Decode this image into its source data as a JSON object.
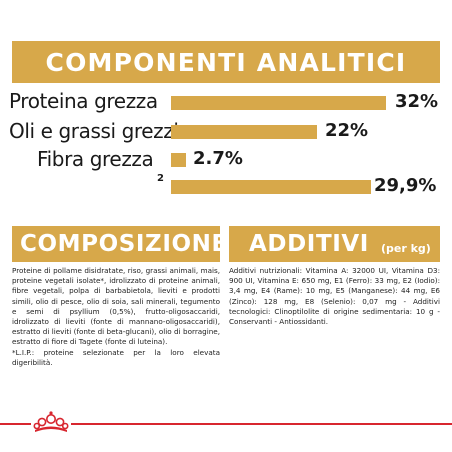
{
  "header": {
    "title": "COMPONENTI ANALITICI"
  },
  "analytics": {
    "rows": [
      {
        "label": "Proteina grezza",
        "value": "32%",
        "percent": 32
      },
      {
        "label": "Oli e grassi grezzi",
        "value": "22%",
        "percent": 22
      },
      {
        "label": "Fibra grezza",
        "value": "2.7%",
        "percent": 2.7
      },
      {
        "label": "2",
        "value": "29,9%",
        "percent": 29.9
      }
    ]
  },
  "composizione": {
    "title": "COMPOSIZIONE",
    "text": "Proteine di pollame disidratate, riso, grassi animali, mais, proteine vegetali isolate*, idrolizzato di proteine animali, fibre vegetali, polpa di barbabietola, lieviti e prodotti simili, olio di pesce, olio di soia, sali minerali, tegumento e semi di psyllium (0,5%), frutto-oligosaccaridi, idrolizzato di lieviti (fonte di mannano-oligosaccaridi), estratto di lieviti (fonte di beta-glucani), olio di borragine, estratto di fiore di Tagete (fonte di luteina).",
    "note": "*L.I.P.: proteine selezionate per la loro elevata digeribilità."
  },
  "additivi": {
    "title": "ADDITIVI",
    "subtitle": "(per kg)",
    "text": "Additivi nutrizionali: Vitamina A: 32000 UI, Vitamina D3: 900 UI, Vitamina E: 650 mg, E1 (Ferro): 33 mg, E2 (Iodio): 3,4 mg, E4 (Rame): 10 mg, E5 (Manganese): 44 mg, E6 (Zinco): 128 mg, E8 (Selenio): 0,07 mg - Additivi tecnologici: Clinoptilolite di origine sedimentaria: 10 g - Conservanti - Antiossidanti."
  },
  "colors": {
    "accent": "#d7a84a",
    "brand_red": "#d8262f",
    "text": "#1a1a1a"
  },
  "icons": {
    "logo": "royal-canin-crown-icon"
  }
}
